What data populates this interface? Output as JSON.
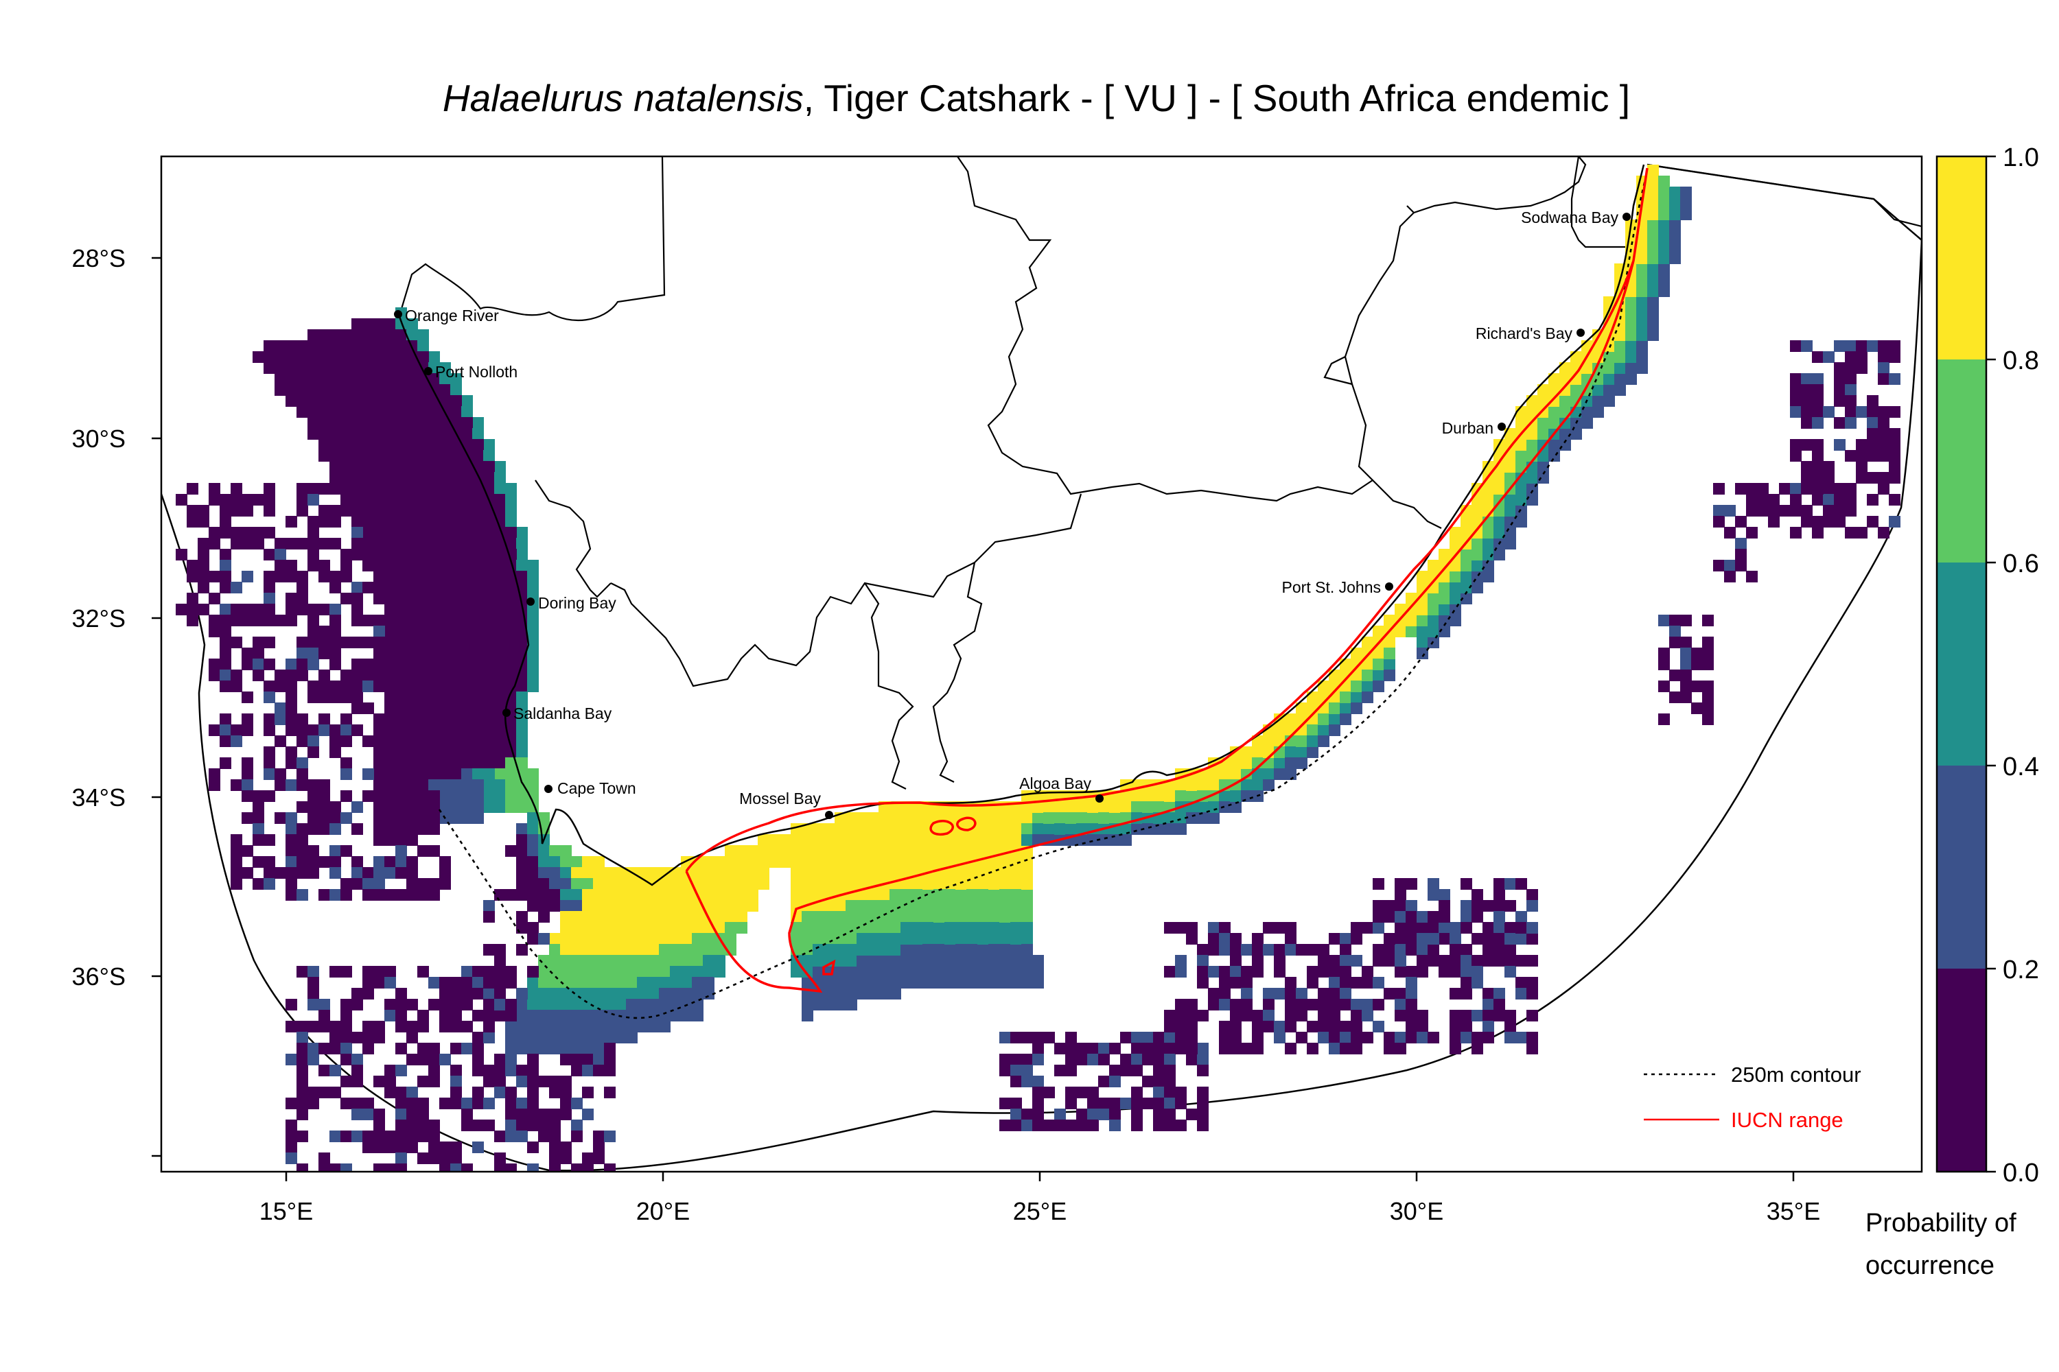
{
  "title": {
    "species_italic": "Halaelurus natalensis",
    "rest": ", Tiger Catshark  - [ VU ] - [ South Africa endemic ]"
  },
  "x_ticks": [
    "15°E",
    "20°E",
    "25°E",
    "30°E",
    "35°E"
  ],
  "y_ticks": [
    "28°S",
    "30°S",
    "32°S",
    "34°S",
    "36°S"
  ],
  "places": [
    {
      "name": "Orange River"
    },
    {
      "name": "Port Nolloth"
    },
    {
      "name": "Doring Bay"
    },
    {
      "name": "Saldanha Bay"
    },
    {
      "name": "Cape Town"
    },
    {
      "name": "Mossel Bay"
    },
    {
      "name": "Algoa Bay"
    },
    {
      "name": "Port St. Johns"
    },
    {
      "name": "Durban"
    },
    {
      "name": "Richard's Bay"
    },
    {
      "name": "Sodwana Bay"
    }
  ],
  "legend": {
    "contour_label": "250m contour",
    "iucn_label": "IUCN range",
    "iucn_color": "#ff0000"
  },
  "colorbar": {
    "title_line1": "Probability of",
    "title_line2": "occurrence",
    "tick_labels": [
      "0.0",
      "0.2",
      "0.4",
      "0.6",
      "0.8",
      "1.0"
    ],
    "bins": [
      {
        "from": 0.0,
        "to": 0.2,
        "color": "#440154"
      },
      {
        "from": 0.2,
        "to": 0.4,
        "color": "#3b528b"
      },
      {
        "from": 0.4,
        "to": 0.6,
        "color": "#21908c"
      },
      {
        "from": 0.6,
        "to": 0.8,
        "color": "#5dc863"
      },
      {
        "from": 0.8,
        "to": 1.0,
        "color": "#fde725"
      }
    ]
  }
}
